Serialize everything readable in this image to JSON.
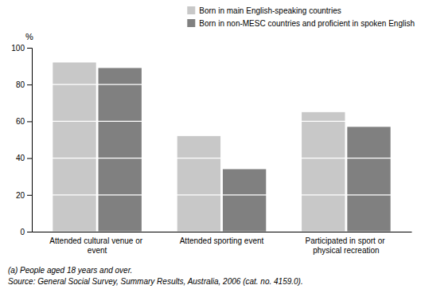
{
  "chart_data": {
    "type": "bar",
    "categories": [
      "Attended cultural venue or event",
      "Attended sporting event",
      "Participated in sport or physical recreation"
    ],
    "series": [
      {
        "name": "Born in main English-speaking countries",
        "color": "#c8c8c8",
        "values": [
          92,
          52,
          65
        ]
      },
      {
        "name": "Born in non-MESC countries and proficient in spoken English",
        "color": "#808080",
        "values": [
          89,
          34,
          57
        ]
      }
    ],
    "ylabel": "%",
    "ylim": [
      0,
      100
    ],
    "yticks": [
      0,
      20,
      40,
      60,
      80,
      100
    ],
    "grid": true,
    "legend": "top-right",
    "annotations": [
      "(a) People aged 18 years and over.",
      "Source: General Social Survey, Summary Results, Australia, 2006 (cat. no. 4159.0)."
    ]
  }
}
